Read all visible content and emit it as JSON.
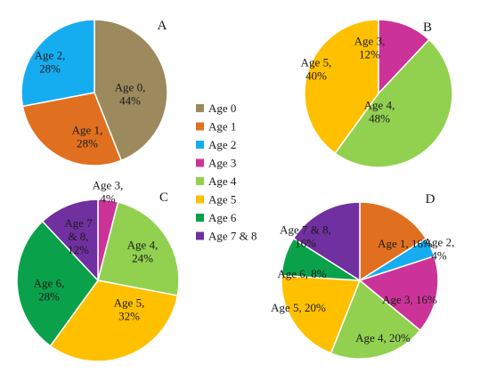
{
  "colors": {
    "Age 0": "#9c8a5e",
    "Age 1": "#e07020",
    "Age 2": "#16adf0",
    "Age 3": "#cc3399",
    "Age 4": "#92d050",
    "Age 5": "#ffc000",
    "Age 6": "#0aa14b",
    "Age 7 & 8": "#7030a0"
  },
  "legend": {
    "items": [
      "Age 0",
      "Age 1",
      "Age 2",
      "Age 3",
      "Age 4",
      "Age 5",
      "Age 6",
      "Age 7 & 8"
    ]
  },
  "chart_data": [
    {
      "type": "pie",
      "panel": "A",
      "slices": [
        {
          "category": "Age 0",
          "value": 44,
          "label": [
            "Age 0,",
            "44%"
          ]
        },
        {
          "category": "Age 1",
          "value": 28,
          "label": [
            "Age 1,",
            "28%"
          ]
        },
        {
          "category": "Age 2",
          "value": 28,
          "label": [
            "Age 2,",
            "28%"
          ]
        }
      ]
    },
    {
      "type": "pie",
      "panel": "B",
      "slices": [
        {
          "category": "Age 3",
          "value": 12,
          "label": [
            "Age 3,",
            "12%"
          ]
        },
        {
          "category": "Age 4",
          "value": 48,
          "label": [
            "Age 4,",
            "48%"
          ]
        },
        {
          "category": "Age 5",
          "value": 40,
          "label": [
            "Age 5,",
            "40%"
          ]
        }
      ]
    },
    {
      "type": "pie",
      "panel": "C",
      "slices": [
        {
          "category": "Age 3",
          "value": 4,
          "label": [
            "Age 3,",
            "4%"
          ]
        },
        {
          "category": "Age 4",
          "value": 24,
          "label": [
            "Age 4,",
            "24%"
          ]
        },
        {
          "category": "Age 5",
          "value": 32,
          "label": [
            "Age 5,",
            "32%"
          ]
        },
        {
          "category": "Age 6",
          "value": 28,
          "label": [
            "Age 6,",
            "28%"
          ]
        },
        {
          "category": "Age 7 & 8",
          "value": 12,
          "label": [
            "Age 7",
            "& 8,",
            "12%"
          ]
        }
      ]
    },
    {
      "type": "pie",
      "panel": "D",
      "slices": [
        {
          "category": "Age 1",
          "value": 16,
          "label": [
            "Age 1, 16%"
          ]
        },
        {
          "category": "Age 2",
          "value": 4,
          "label": [
            "Age 2,",
            "4%"
          ]
        },
        {
          "category": "Age 3",
          "value": 16,
          "label": [
            "Age 3, 16%"
          ]
        },
        {
          "category": "Age 4",
          "value": 20,
          "label": [
            "Age 4, 20%"
          ]
        },
        {
          "category": "Age 5",
          "value": 20,
          "label": [
            "Age 5, 20%"
          ]
        },
        {
          "category": "Age 6",
          "value": 8,
          "label": [
            "Age 6, 8%"
          ]
        },
        {
          "category": "Age 7 & 8",
          "value": 16,
          "label": [
            "Age 7 & 8,",
            "16%"
          ]
        }
      ]
    }
  ]
}
